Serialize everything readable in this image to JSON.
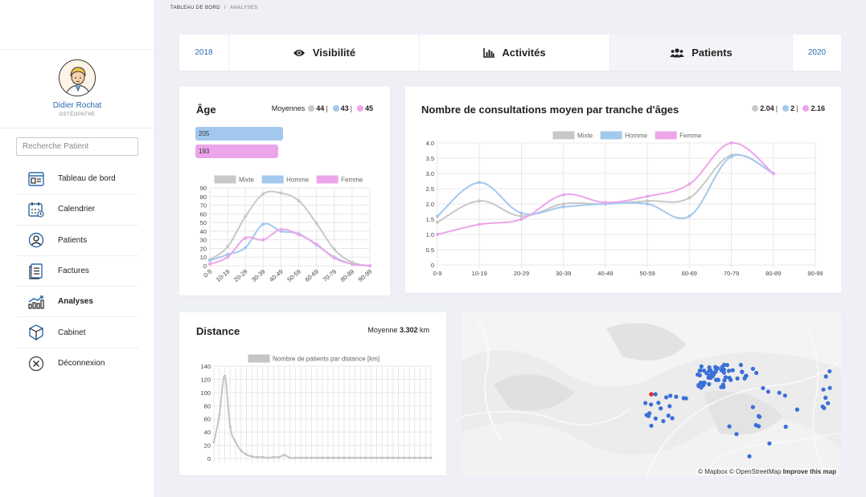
{
  "breadcrumb": {
    "root": "TABLEAU DE BORD",
    "separator": "/",
    "current": "ANALYSES"
  },
  "profile": {
    "name": "Didier Rochat",
    "role": "OSTÉOPATHE"
  },
  "search": {
    "placeholder": "Recherche Patient"
  },
  "menu": [
    {
      "label": "Tableau de bord",
      "icon": "dashboard-icon"
    },
    {
      "label": "Calendrier",
      "icon": "calendar-icon"
    },
    {
      "label": "Patients",
      "icon": "user-icon"
    },
    {
      "label": "Factures",
      "icon": "invoice-icon"
    },
    {
      "label": "Analyses",
      "icon": "chart-icon",
      "active": true
    },
    {
      "label": "Cabinet",
      "icon": "box-icon"
    },
    {
      "label": "Déconnexion",
      "icon": "logout-icon"
    }
  ],
  "tabs": {
    "year_left": "2018",
    "visibility": "Visibilité",
    "activities": "Activités",
    "patients": "Patients",
    "year_right": "2020"
  },
  "colors": {
    "mixte": "#c8c8c8",
    "homme": "#a3c8ee",
    "femme": "#eca5ea",
    "accent": "#2b6cb0",
    "map_point": "#3a6fd8",
    "map_highlight": "#e03030"
  },
  "age_card": {
    "title": "Âge",
    "averages_label": "Moyennes",
    "avg_mixte": "44",
    "avg_homme": "43",
    "avg_femme": "45",
    "count_homme": "205",
    "count_femme": "193",
    "sep": "|"
  },
  "consult_card": {
    "title": "Nombre de consultations moyen par tranche d'âges",
    "avg_mixte": "2.04",
    "avg_homme": "2",
    "avg_femme": "2.16",
    "sep": "|"
  },
  "distance_card": {
    "title": "Distance",
    "avg_label": "Moyenne",
    "avg_value": "3.302",
    "unit": "km"
  },
  "map": {
    "attr_mapbox": "© Mapbox",
    "attr_osm": "© OpenStreetMap",
    "improve": "Improve this map"
  },
  "chart_data": [
    {
      "type": "line",
      "categories": [
        "0-9",
        "10-19",
        "20-29",
        "30-39",
        "40-49",
        "50-59",
        "60-69",
        "70-79",
        "80-89",
        "90-99"
      ],
      "ylim": [
        0,
        90
      ],
      "yticks": [
        0,
        10,
        20,
        30,
        40,
        50,
        60,
        70,
        80,
        90
      ],
      "series": [
        {
          "name": "Mixte",
          "values": [
            7,
            22,
            57,
            83,
            84,
            75,
            49,
            19,
            4,
            0
          ]
        },
        {
          "name": "Homme",
          "values": [
            6,
            13,
            21,
            48,
            40,
            37,
            24,
            10,
            2,
            0
          ]
        },
        {
          "name": "Femme",
          "values": [
            2,
            10,
            32,
            30,
            42,
            36,
            25,
            9,
            2,
            0
          ]
        }
      ]
    },
    {
      "type": "line",
      "categories": [
        "0-9",
        "10-19",
        "20-29",
        "30-39",
        "40-49",
        "50-59",
        "60-69",
        "70-79",
        "80-89",
        "90-99"
      ],
      "ylim": [
        0,
        4
      ],
      "yticks": [
        "0",
        "0.5",
        "1.0",
        "1.5",
        "2.0",
        "2.5",
        "3.0",
        "3.5",
        "4.0"
      ],
      "series": [
        {
          "name": "Mixte",
          "values": [
            1.4,
            2.1,
            1.6,
            2.0,
            2.0,
            2.1,
            2.2,
            3.6,
            3.0,
            null
          ]
        },
        {
          "name": "Homme",
          "values": [
            1.6,
            2.7,
            1.7,
            1.9,
            2.0,
            2.0,
            1.6,
            3.55,
            3.0,
            null
          ]
        },
        {
          "name": "Femme",
          "values": [
            1.0,
            1.33,
            1.5,
            2.3,
            2.05,
            2.25,
            2.65,
            4.0,
            3.0,
            null
          ]
        }
      ]
    },
    {
      "type": "line",
      "x": [
        "0",
        "1",
        "2",
        "3",
        "4",
        "5",
        "6",
        "7",
        "8",
        "9",
        "10",
        "11",
        "12",
        "13",
        "14",
        "15",
        "16",
        "17",
        "18",
        "19",
        "20",
        "21",
        "22",
        "23",
        "24",
        "25",
        "26",
        "27",
        "28",
        "29",
        "30",
        "31",
        "32",
        "33",
        "34",
        "35",
        "36",
        "37",
        "38",
        "39",
        "40"
      ],
      "ylim": [
        0,
        140
      ],
      "yticks": [
        0,
        20,
        40,
        60,
        80,
        100,
        120,
        140
      ],
      "series": [
        {
          "name": "Nombre de patients par distance [km]",
          "values": [
            25,
            65,
            125,
            48,
            25,
            12,
            6,
            3,
            2,
            2,
            1,
            2,
            2,
            5,
            1,
            1,
            1,
            1,
            1,
            1,
            1,
            1,
            1,
            1,
            1,
            1,
            1,
            1,
            1,
            1,
            1,
            1,
            1,
            1,
            1,
            1,
            1,
            1,
            1,
            1,
            1
          ]
        }
      ]
    }
  ]
}
